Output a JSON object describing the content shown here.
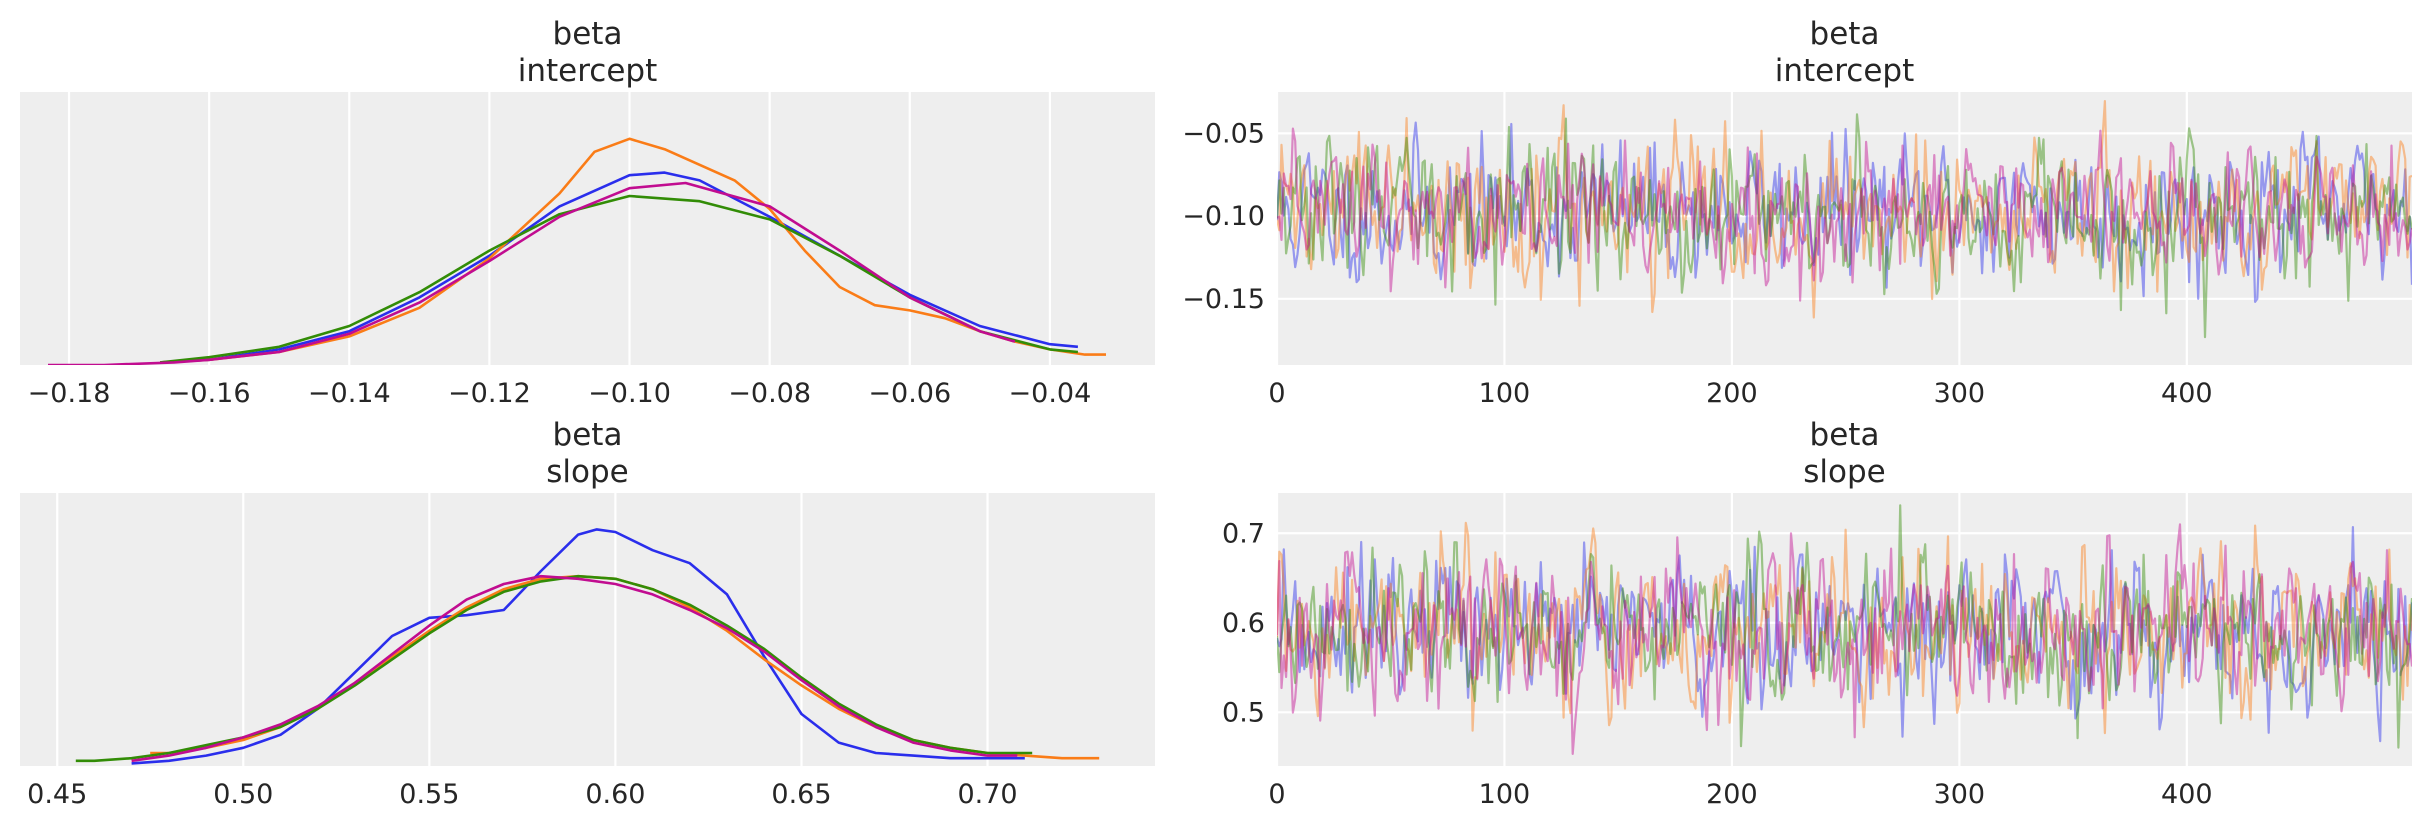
{
  "palette": [
    "#2a2eec",
    "#fa7c17",
    "#328c06",
    "#c10c90"
  ],
  "chart_data": [
    {
      "type": "line",
      "kind": "kde",
      "title": [
        "beta",
        "intercept"
      ],
      "xlim": [
        -0.187,
        -0.025
      ],
      "ylim": [
        0,
        1.05
      ],
      "xticks": [
        -0.18,
        -0.16,
        -0.14,
        -0.12,
        -0.1,
        -0.08,
        -0.06,
        -0.04
      ],
      "xtick_labels": [
        "−0.18",
        "−0.16",
        "−0.14",
        "−0.12",
        "−0.10",
        "−0.08",
        "−0.06",
        "−0.04"
      ],
      "series": [
        {
          "color": "#2a2eec",
          "x": [
            -0.167,
            -0.16,
            -0.15,
            -0.14,
            -0.13,
            -0.12,
            -0.11,
            -0.1,
            -0.095,
            -0.09,
            -0.08,
            -0.07,
            -0.06,
            -0.05,
            -0.04,
            -0.036
          ],
          "y": [
            0.01,
            0.02,
            0.06,
            0.13,
            0.26,
            0.42,
            0.61,
            0.73,
            0.74,
            0.71,
            0.57,
            0.42,
            0.27,
            0.15,
            0.08,
            0.07
          ]
        },
        {
          "color": "#fa7c17",
          "x": [
            -0.167,
            -0.16,
            -0.15,
            -0.14,
            -0.13,
            -0.12,
            -0.11,
            -0.105,
            -0.1,
            -0.095,
            -0.09,
            -0.085,
            -0.08,
            -0.075,
            -0.07,
            -0.065,
            -0.06,
            -0.055,
            -0.05,
            -0.045,
            -0.04,
            -0.035,
            -0.032
          ],
          "y": [
            0.01,
            0.02,
            0.05,
            0.11,
            0.22,
            0.41,
            0.66,
            0.82,
            0.87,
            0.83,
            0.77,
            0.71,
            0.6,
            0.44,
            0.3,
            0.23,
            0.21,
            0.18,
            0.13,
            0.09,
            0.06,
            0.04,
            0.04
          ]
        },
        {
          "color": "#328c06",
          "x": [
            -0.167,
            -0.16,
            -0.15,
            -0.14,
            -0.13,
            -0.12,
            -0.11,
            -0.1,
            -0.09,
            -0.08,
            -0.07,
            -0.06,
            -0.05,
            -0.04,
            -0.036
          ],
          "y": [
            0.01,
            0.03,
            0.07,
            0.15,
            0.28,
            0.44,
            0.58,
            0.65,
            0.63,
            0.56,
            0.42,
            0.26,
            0.13,
            0.06,
            0.05
          ]
        },
        {
          "color": "#c10c90",
          "x": [
            -0.183,
            -0.175,
            -0.165,
            -0.16,
            -0.15,
            -0.14,
            -0.13,
            -0.12,
            -0.11,
            -0.1,
            -0.092,
            -0.08,
            -0.07,
            -0.06,
            -0.05,
            -0.045
          ],
          "y": [
            0.0,
            0.0,
            0.01,
            0.02,
            0.05,
            0.12,
            0.24,
            0.4,
            0.57,
            0.68,
            0.7,
            0.61,
            0.44,
            0.26,
            0.13,
            0.09
          ]
        }
      ]
    },
    {
      "type": "line",
      "kind": "trace",
      "title": [
        "beta",
        "intercept"
      ],
      "xlim": [
        0,
        499
      ],
      "ylim": [
        -0.19,
        -0.025
      ],
      "xticks": [
        0,
        100,
        200,
        300,
        400
      ],
      "xtick_labels": [
        "0",
        "100",
        "200",
        "300",
        "400"
      ],
      "yticks": [
        -0.05,
        -0.1,
        -0.15
      ],
      "ytick_labels": [
        "−0.05",
        "−0.10",
        "−0.15"
      ],
      "draws": 500,
      "center": -0.097,
      "sd": 0.021,
      "seeds": [
        11,
        22,
        33,
        44
      ]
    },
    {
      "type": "line",
      "kind": "kde",
      "title": [
        "beta",
        "slope"
      ],
      "xlim": [
        0.44,
        0.745
      ],
      "ylim": [
        0,
        1.05
      ],
      "xticks": [
        0.45,
        0.5,
        0.55,
        0.6,
        0.65,
        0.7
      ],
      "xtick_labels": [
        "0.45",
        "0.50",
        "0.55",
        "0.60",
        "0.65",
        "0.70"
      ],
      "series": [
        {
          "color": "#2a2eec",
          "x": [
            0.47,
            0.48,
            0.49,
            0.5,
            0.51,
            0.52,
            0.53,
            0.54,
            0.55,
            0.56,
            0.57,
            0.58,
            0.59,
            0.595,
            0.6,
            0.61,
            0.62,
            0.63,
            0.64,
            0.65,
            0.66,
            0.67,
            0.68,
            0.69,
            0.7,
            0.71
          ],
          "y": [
            0.01,
            0.02,
            0.04,
            0.07,
            0.12,
            0.22,
            0.36,
            0.5,
            0.57,
            0.58,
            0.6,
            0.75,
            0.89,
            0.91,
            0.9,
            0.83,
            0.78,
            0.66,
            0.42,
            0.2,
            0.09,
            0.05,
            0.04,
            0.03,
            0.03,
            0.03
          ]
        },
        {
          "color": "#fa7c17",
          "x": [
            0.475,
            0.48,
            0.49,
            0.5,
            0.51,
            0.52,
            0.53,
            0.54,
            0.55,
            0.56,
            0.57,
            0.58,
            0.59,
            0.6,
            0.61,
            0.62,
            0.63,
            0.64,
            0.65,
            0.66,
            0.67,
            0.68,
            0.69,
            0.7,
            0.71,
            0.72,
            0.73
          ],
          "y": [
            0.05,
            0.05,
            0.07,
            0.1,
            0.15,
            0.22,
            0.32,
            0.42,
            0.52,
            0.61,
            0.68,
            0.72,
            0.73,
            0.72,
            0.68,
            0.61,
            0.52,
            0.41,
            0.31,
            0.22,
            0.15,
            0.1,
            0.07,
            0.05,
            0.04,
            0.03,
            0.03
          ]
        },
        {
          "color": "#328c06",
          "x": [
            0.455,
            0.46,
            0.47,
            0.48,
            0.49,
            0.5,
            0.51,
            0.52,
            0.53,
            0.54,
            0.55,
            0.56,
            0.57,
            0.58,
            0.59,
            0.6,
            0.61,
            0.62,
            0.63,
            0.64,
            0.65,
            0.66,
            0.67,
            0.68,
            0.69,
            0.7,
            0.712
          ],
          "y": [
            0.02,
            0.02,
            0.03,
            0.05,
            0.08,
            0.11,
            0.15,
            0.22,
            0.31,
            0.41,
            0.51,
            0.6,
            0.67,
            0.71,
            0.73,
            0.72,
            0.68,
            0.62,
            0.54,
            0.45,
            0.34,
            0.24,
            0.16,
            0.1,
            0.07,
            0.05,
            0.05
          ]
        },
        {
          "color": "#c10c90",
          "x": [
            0.47,
            0.48,
            0.49,
            0.5,
            0.51,
            0.52,
            0.53,
            0.54,
            0.55,
            0.56,
            0.57,
            0.58,
            0.59,
            0.6,
            0.61,
            0.62,
            0.63,
            0.64,
            0.65,
            0.66,
            0.67,
            0.68,
            0.69,
            0.7,
            0.708
          ],
          "y": [
            0.02,
            0.04,
            0.07,
            0.11,
            0.16,
            0.23,
            0.32,
            0.43,
            0.54,
            0.64,
            0.7,
            0.73,
            0.72,
            0.7,
            0.66,
            0.6,
            0.53,
            0.44,
            0.33,
            0.23,
            0.15,
            0.09,
            0.06,
            0.04,
            0.04
          ]
        }
      ]
    },
    {
      "type": "line",
      "kind": "trace",
      "title": [
        "beta",
        "slope"
      ],
      "xlim": [
        0,
        499
      ],
      "ylim": [
        0.44,
        0.745
      ],
      "xticks": [
        0,
        100,
        200,
        300,
        400
      ],
      "xtick_labels": [
        "0",
        "100",
        "200",
        "300",
        "400"
      ],
      "yticks": [
        0.5,
        0.6,
        0.7
      ],
      "ytick_labels": [
        "0.5",
        "0.6",
        "0.7"
      ],
      "draws": 500,
      "center": 0.59,
      "sd": 0.042,
      "seeds": [
        55,
        66,
        77,
        88
      ]
    }
  ]
}
